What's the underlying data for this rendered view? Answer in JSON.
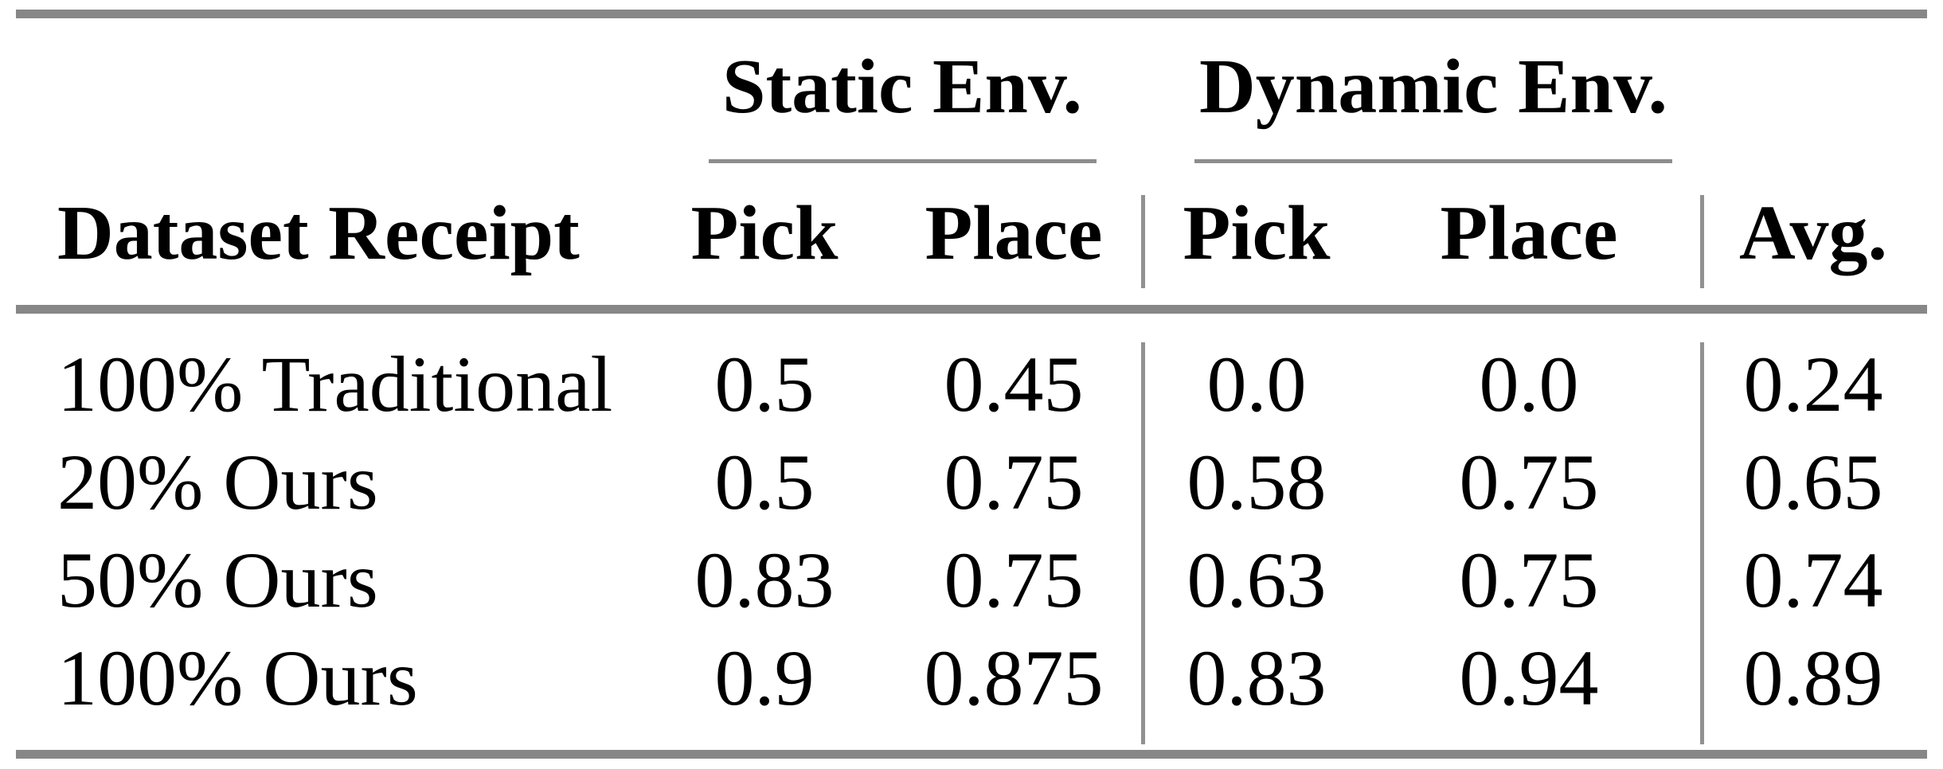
{
  "table": {
    "group_headers": {
      "static": "Static Env.",
      "dynamic": "Dynamic Env."
    },
    "column_headers": {
      "row_header": "Dataset Receipt",
      "static_pick": "Pick",
      "static_place": "Place",
      "dynamic_pick": "Pick",
      "dynamic_place": "Place",
      "avg": "Avg."
    },
    "rows": [
      {
        "label": "100% Traditional",
        "static_pick": "0.5",
        "static_place": "0.45",
        "dynamic_pick": "0.0",
        "dynamic_place": "0.0",
        "avg": "0.24"
      },
      {
        "label": "20% Ours",
        "static_pick": "0.5",
        "static_place": "0.75",
        "dynamic_pick": "0.58",
        "dynamic_place": "0.75",
        "avg": "0.65"
      },
      {
        "label": "50% Ours",
        "static_pick": "0.83",
        "static_place": "0.75",
        "dynamic_pick": "0.63",
        "dynamic_place": "0.75",
        "avg": "0.74"
      },
      {
        "label": "100% Ours",
        "static_pick": "0.9",
        "static_place": "0.875",
        "dynamic_pick": "0.83",
        "dynamic_place": "0.94",
        "avg": "0.89"
      }
    ]
  },
  "colors": {
    "rule_thick": "#878787",
    "rule_thin": "#8d8d8d",
    "rule_vertical": "#919191",
    "text": "#000000",
    "background": "#ffffff"
  },
  "chart_data": {
    "type": "table",
    "columns": [
      "Dataset Receipt",
      "Static Env. Pick",
      "Static Env. Place",
      "Dynamic Env. Pick",
      "Dynamic Env. Place",
      "Avg."
    ],
    "rows": [
      [
        "100% Traditional",
        0.5,
        0.45,
        0.0,
        0.0,
        0.24
      ],
      [
        "20% Ours",
        0.5,
        0.75,
        0.58,
        0.75,
        0.65
      ],
      [
        "50% Ours",
        0.83,
        0.75,
        0.63,
        0.75,
        0.74
      ],
      [
        "100% Ours",
        0.9,
        0.875,
        0.83,
        0.94,
        0.89
      ]
    ]
  }
}
